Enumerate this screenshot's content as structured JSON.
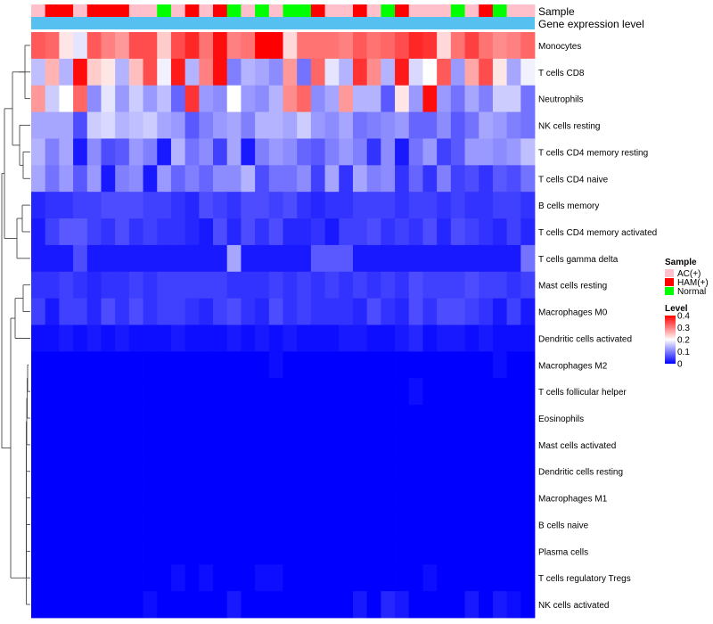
{
  "chart_data": {
    "type": "heatmap",
    "title": "",
    "annotation_tracks": [
      "Sample",
      "Gene expression level"
    ],
    "rows": [
      "Monocytes",
      "T cells CD8",
      "Neutrophils",
      "NK cells resting",
      "T cells CD4 memory resting",
      "T cells CD4 naive",
      "B cells memory",
      "T cells CD4 memory activated",
      "T cells gamma delta",
      "Mast cells resting",
      "Macrophages M0",
      "Dendritic cells activated",
      "Macrophages M2",
      "T cells follicular helper",
      "Eosinophils",
      "Mast cells activated",
      "Dendritic cells resting",
      "Macrophages M1",
      "B cells naive",
      "Plasma cells",
      "T cells regulatory  Tregs",
      "NK cells activated"
    ],
    "sample_groups": [
      "AC",
      "HAM",
      "HAM",
      "AC",
      "HAM",
      "HAM",
      "HAM",
      "AC",
      "AC",
      "Normal",
      "AC",
      "HAM",
      "AC",
      "HAM",
      "Normal",
      "AC",
      "Normal",
      "AC",
      "Normal",
      "Normal",
      "HAM",
      "AC",
      "AC",
      "HAM",
      "AC",
      "Normal",
      "HAM",
      "AC",
      "AC",
      "AC",
      "Normal",
      "AC",
      "HAM",
      "Normal",
      "AC",
      "AC"
    ],
    "values": [
      [
        0.33,
        0.32,
        0.22,
        0.18,
        0.33,
        0.3,
        0.28,
        0.34,
        0.34,
        0.24,
        0.34,
        0.37,
        0.31,
        0.39,
        0.3,
        0.31,
        0.4,
        0.4,
        0.23,
        0.31,
        0.31,
        0.31,
        0.3,
        0.33,
        0.31,
        0.32,
        0.34,
        0.37,
        0.36,
        0.23,
        0.31,
        0.35,
        0.31,
        0.29,
        0.3,
        0.32
      ],
      [
        0.15,
        0.26,
        0.14,
        0.39,
        0.24,
        0.22,
        0.14,
        0.25,
        0.34,
        0.19,
        0.38,
        0.14,
        0.3,
        0.39,
        0.1,
        0.14,
        0.13,
        0.11,
        0.28,
        0.09,
        0.32,
        0.18,
        0.14,
        0.36,
        0.29,
        0.14,
        0.38,
        0.17,
        0.2,
        0.33,
        0.12,
        0.27,
        0.34,
        0.22,
        0.13,
        0.19
      ],
      [
        0.28,
        0.16,
        0.2,
        0.32,
        0.11,
        0.18,
        0.12,
        0.16,
        0.12,
        0.15,
        0.08,
        0.36,
        0.12,
        0.11,
        0.2,
        0.12,
        0.11,
        0.14,
        0.29,
        0.32,
        0.11,
        0.13,
        0.28,
        0.14,
        0.14,
        0.07,
        0.22,
        0.12,
        0.39,
        0.12,
        0.09,
        0.13,
        0.1,
        0.16,
        0.16,
        0.09
      ],
      [
        0.13,
        0.13,
        0.13,
        0.06,
        0.16,
        0.17,
        0.14,
        0.15,
        0.16,
        0.13,
        0.12,
        0.07,
        0.1,
        0.12,
        0.13,
        0.1,
        0.14,
        0.14,
        0.13,
        0.16,
        0.12,
        0.11,
        0.13,
        0.09,
        0.1,
        0.11,
        0.12,
        0.08,
        0.08,
        0.11,
        0.07,
        0.09,
        0.13,
        0.12,
        0.1,
        0.09
      ],
      [
        0.14,
        0.1,
        0.13,
        0.02,
        0.11,
        0.06,
        0.07,
        0.12,
        0.1,
        0.02,
        0.14,
        0.09,
        0.11,
        0.05,
        0.13,
        0.02,
        0.1,
        0.12,
        0.11,
        0.08,
        0.07,
        0.1,
        0.12,
        0.1,
        0.04,
        0.11,
        0.02,
        0.09,
        0.12,
        0.05,
        0.07,
        0.12,
        0.12,
        0.11,
        0.12,
        0.15
      ],
      [
        0.13,
        0.09,
        0.12,
        0.07,
        0.12,
        0.02,
        0.1,
        0.11,
        0.02,
        0.12,
        0.08,
        0.1,
        0.08,
        0.11,
        0.11,
        0.14,
        0.06,
        0.09,
        0.09,
        0.11,
        0.05,
        0.13,
        0.04,
        0.13,
        0.1,
        0.11,
        0.04,
        0.08,
        0.04,
        0.1,
        0.05,
        0.06,
        0.04,
        0.07,
        0.06,
        0.09
      ],
      [
        0.03,
        0.04,
        0.04,
        0.05,
        0.05,
        0.06,
        0.06,
        0.06,
        0.05,
        0.05,
        0.04,
        0.03,
        0.06,
        0.05,
        0.04,
        0.06,
        0.06,
        0.05,
        0.06,
        0.04,
        0.03,
        0.04,
        0.04,
        0.05,
        0.05,
        0.05,
        0.04,
        0.05,
        0.05,
        0.04,
        0.05,
        0.04,
        0.04,
        0.05,
        0.05,
        0.04
      ],
      [
        0.02,
        0.05,
        0.07,
        0.07,
        0.05,
        0.04,
        0.06,
        0.04,
        0.05,
        0.04,
        0.04,
        0.03,
        0.02,
        0.06,
        0.03,
        0.06,
        0.04,
        0.06,
        0.03,
        0.03,
        0.04,
        0.02,
        0.05,
        0.05,
        0.06,
        0.04,
        0.05,
        0.04,
        0.06,
        0.03,
        0.06,
        0.05,
        0.04,
        0.03,
        0.05,
        0.03
      ],
      [
        0.02,
        0.02,
        0.02,
        0.06,
        0.02,
        0.02,
        0.02,
        0.02,
        0.02,
        0.02,
        0.02,
        0.02,
        0.02,
        0.02,
        0.13,
        0.02,
        0.02,
        0.02,
        0.02,
        0.02,
        0.07,
        0.07,
        0.07,
        0.02,
        0.02,
        0.02,
        0.02,
        0.02,
        0.02,
        0.02,
        0.02,
        0.02,
        0.02,
        0.02,
        0.02,
        0.09
      ],
      [
        0.04,
        0.04,
        0.05,
        0.04,
        0.03,
        0.04,
        0.04,
        0.05,
        0.04,
        0.05,
        0.05,
        0.05,
        0.05,
        0.05,
        0.04,
        0.04,
        0.04,
        0.05,
        0.04,
        0.05,
        0.04,
        0.05,
        0.04,
        0.05,
        0.04,
        0.05,
        0.04,
        0.06,
        0.05,
        0.05,
        0.05,
        0.06,
        0.05,
        0.05,
        0.04,
        0.05
      ],
      [
        0.05,
        0.02,
        0.05,
        0.05,
        0.03,
        0.06,
        0.04,
        0.06,
        0.04,
        0.05,
        0.05,
        0.04,
        0.03,
        0.05,
        0.06,
        0.04,
        0.03,
        0.06,
        0.04,
        0.05,
        0.04,
        0.04,
        0.04,
        0.03,
        0.06,
        0.04,
        0.03,
        0.06,
        0.04,
        0.06,
        0.06,
        0.05,
        0.04,
        0.02,
        0.05,
        0.02
      ],
      [
        0.01,
        0.01,
        0.02,
        0.01,
        0.02,
        0.01,
        0.02,
        0.01,
        0.01,
        0.01,
        0.02,
        0.01,
        0.01,
        0.01,
        0.02,
        0.01,
        0.02,
        0.01,
        0.02,
        0.01,
        0.01,
        0.01,
        0.02,
        0.02,
        0.01,
        0.01,
        0.02,
        0.03,
        0.01,
        0.02,
        0.02,
        0.01,
        0.02,
        0.01,
        0.01,
        0.01
      ],
      [
        0.0,
        0.0,
        0.0,
        0.0,
        0.0,
        0.0,
        0.0,
        0.0,
        0.0,
        0.0,
        0.0,
        0.0,
        0.0,
        0.0,
        0.0,
        0.0,
        0.0,
        0.01,
        0.0,
        0.0,
        0.0,
        0.0,
        0.0,
        0.0,
        0.0,
        0.0,
        0.0,
        0.0,
        0.0,
        0.0,
        0.0,
        0.0,
        0.0,
        0.01,
        0.0,
        0.0
      ],
      [
        0.0,
        0.0,
        0.0,
        0.0,
        0.0,
        0.0,
        0.0,
        0.0,
        0.0,
        0.0,
        0.0,
        0.0,
        0.0,
        0.0,
        0.0,
        0.0,
        0.0,
        0.0,
        0.0,
        0.0,
        0.0,
        0.0,
        0.0,
        0.0,
        0.0,
        0.0,
        0.0,
        0.01,
        0.0,
        0.0,
        0.0,
        0.0,
        0.0,
        0.0,
        0.0,
        0.0
      ],
      [
        0.0,
        0.0,
        0.0,
        0.0,
        0.0,
        0.0,
        0.0,
        0.0,
        0.0,
        0.0,
        0.0,
        0.0,
        0.0,
        0.0,
        0.0,
        0.0,
        0.0,
        0.0,
        0.0,
        0.0,
        0.0,
        0.0,
        0.0,
        0.0,
        0.0,
        0.0,
        0.0,
        0.0,
        0.0,
        0.0,
        0.0,
        0.0,
        0.0,
        0.0,
        0.0,
        0.0
      ],
      [
        0.0,
        0.0,
        0.0,
        0.0,
        0.0,
        0.0,
        0.0,
        0.0,
        0.0,
        0.0,
        0.0,
        0.0,
        0.0,
        0.0,
        0.0,
        0.0,
        0.0,
        0.0,
        0.0,
        0.0,
        0.0,
        0.0,
        0.0,
        0.0,
        0.0,
        0.0,
        0.0,
        0.0,
        0.0,
        0.0,
        0.0,
        0.0,
        0.0,
        0.0,
        0.0,
        0.0
      ],
      [
        0.0,
        0.0,
        0.0,
        0.0,
        0.0,
        0.0,
        0.0,
        0.0,
        0.0,
        0.0,
        0.0,
        0.0,
        0.0,
        0.0,
        0.0,
        0.0,
        0.0,
        0.0,
        0.0,
        0.0,
        0.0,
        0.0,
        0.0,
        0.0,
        0.0,
        0.0,
        0.0,
        0.0,
        0.0,
        0.0,
        0.0,
        0.0,
        0.0,
        0.0,
        0.0,
        0.0
      ],
      [
        0.0,
        0.0,
        0.0,
        0.0,
        0.0,
        0.0,
        0.0,
        0.0,
        0.0,
        0.0,
        0.0,
        0.0,
        0.0,
        0.0,
        0.0,
        0.0,
        0.0,
        0.0,
        0.0,
        0.0,
        0.0,
        0.0,
        0.0,
        0.0,
        0.0,
        0.0,
        0.0,
        0.0,
        0.0,
        0.0,
        0.0,
        0.0,
        0.0,
        0.0,
        0.0,
        0.0
      ],
      [
        0.0,
        0.0,
        0.0,
        0.0,
        0.0,
        0.0,
        0.0,
        0.0,
        0.0,
        0.0,
        0.0,
        0.0,
        0.0,
        0.0,
        0.0,
        0.0,
        0.0,
        0.0,
        0.0,
        0.0,
        0.0,
        0.0,
        0.0,
        0.0,
        0.0,
        0.0,
        0.0,
        0.0,
        0.0,
        0.0,
        0.0,
        0.0,
        0.0,
        0.0,
        0.0,
        0.0
      ],
      [
        0.0,
        0.0,
        0.0,
        0.0,
        0.0,
        0.0,
        0.0,
        0.0,
        0.0,
        0.0,
        0.0,
        0.0,
        0.0,
        0.0,
        0.0,
        0.0,
        0.0,
        0.0,
        0.0,
        0.0,
        0.0,
        0.0,
        0.0,
        0.0,
        0.0,
        0.0,
        0.0,
        0.0,
        0.0,
        0.0,
        0.0,
        0.0,
        0.0,
        0.0,
        0.0,
        0.0
      ],
      [
        0.0,
        0.0,
        0.0,
        0.0,
        0.0,
        0.0,
        0.0,
        0.0,
        0.0,
        0.0,
        0.01,
        0.0,
        0.01,
        0.0,
        0.0,
        0.0,
        0.01,
        0.01,
        0.0,
        0.0,
        0.0,
        0.0,
        0.0,
        0.0,
        0.0,
        0.0,
        0.0,
        0.0,
        0.01,
        0.0,
        0.0,
        0.0,
        0.0,
        0.0,
        0.0,
        0.0
      ],
      [
        0.0,
        0.0,
        0.0,
        0.0,
        0.0,
        0.0,
        0.0,
        0.0,
        0.01,
        0.0,
        0.0,
        0.0,
        0.0,
        0.0,
        0.02,
        0.0,
        0.0,
        0.0,
        0.0,
        0.0,
        0.0,
        0.0,
        0.0,
        0.02,
        0.0,
        0.03,
        0.02,
        0.0,
        0.0,
        0.0,
        0.0,
        0.02,
        0.0,
        0.02,
        0.01,
        0.0
      ]
    ],
    "color_scale": {
      "min": 0,
      "max": 0.4,
      "low": "#0000ff",
      "mid": "#ffffff",
      "high": "#ff0000",
      "mid_value": 0.2
    },
    "legend": {
      "sample_title": "Sample",
      "sample_items": [
        {
          "key": "AC",
          "label": "AC(+)",
          "color": "#ffc0cb"
        },
        {
          "key": "HAM",
          "label": "HAM(+)",
          "color": "#ff0000"
        },
        {
          "key": "Normal",
          "label": "Normal",
          "color": "#00ff00"
        }
      ],
      "level_title": "Level",
      "level_ticks": [
        "0.4",
        "0.3",
        "0.2",
        "0.1",
        "0"
      ],
      "placement": "right"
    },
    "gene_expression_color": "#56c1f0"
  }
}
